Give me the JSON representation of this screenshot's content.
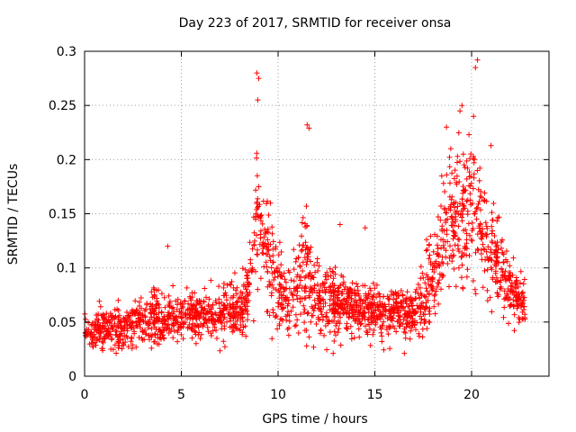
{
  "chart_data": {
    "type": "scatter",
    "title": "Day 223 of 2017, SRMTID for receiver onsa",
    "xlabel": "GPS time / hours",
    "ylabel": "SRMTID / TECUs",
    "xlim": [
      0,
      24
    ],
    "ylim": [
      0,
      0.3
    ],
    "xticks": [
      0,
      5,
      10,
      15,
      20
    ],
    "xtick_labels": [
      "0",
      "5",
      "10",
      "15",
      "20"
    ],
    "yticks": [
      0,
      0.05,
      0.1,
      0.15,
      0.2,
      0.25,
      0.3
    ],
    "ytick_labels": [
      "0",
      "0.05",
      "0.1",
      "0.15",
      "0.2",
      "0.25",
      "0.3"
    ],
    "grid": true,
    "marker": "+",
    "color": "#ff0000",
    "series": [
      {
        "name": "onsa",
        "profile_x": [
          0,
          1,
          2,
          3,
          4,
          5,
          6,
          7,
          8,
          8.5,
          8.8,
          9.0,
          9.3,
          9.6,
          10,
          10.5,
          11,
          11.5,
          11.8,
          12,
          12.5,
          13,
          14,
          15,
          16,
          17,
          17.5,
          18,
          18.5,
          19,
          19.5,
          20,
          20.5,
          21,
          21.5,
          22,
          22.5,
          22.8
        ],
        "profile_mean": [
          0.04,
          0.045,
          0.045,
          0.05,
          0.05,
          0.055,
          0.058,
          0.058,
          0.06,
          0.08,
          0.13,
          0.15,
          0.12,
          0.1,
          0.08,
          0.075,
          0.08,
          0.1,
          0.08,
          0.07,
          0.07,
          0.065,
          0.065,
          0.06,
          0.06,
          0.06,
          0.07,
          0.09,
          0.12,
          0.15,
          0.15,
          0.16,
          0.14,
          0.11,
          0.1,
          0.08,
          0.07,
          0.06
        ],
        "profile_spread": [
          0.015,
          0.018,
          0.018,
          0.02,
          0.02,
          0.02,
          0.02,
          0.02,
          0.02,
          0.03,
          0.06,
          0.07,
          0.05,
          0.04,
          0.03,
          0.03,
          0.035,
          0.06,
          0.035,
          0.03,
          0.03,
          0.025,
          0.025,
          0.02,
          0.02,
          0.02,
          0.03,
          0.04,
          0.05,
          0.06,
          0.06,
          0.07,
          0.05,
          0.04,
          0.035,
          0.025,
          0.02,
          0.02
        ],
        "point_count": 2200,
        "peaks": [
          {
            "x": 8.9,
            "y": 0.28
          },
          {
            "x": 9.0,
            "y": 0.275
          },
          {
            "x": 8.95,
            "y": 0.255
          },
          {
            "x": 11.5,
            "y": 0.232
          },
          {
            "x": 11.6,
            "y": 0.229
          },
          {
            "x": 20.3,
            "y": 0.292
          },
          {
            "x": 20.2,
            "y": 0.285
          },
          {
            "x": 19.5,
            "y": 0.25
          },
          {
            "x": 19.4,
            "y": 0.245
          },
          {
            "x": 20.1,
            "y": 0.24
          },
          {
            "x": 18.7,
            "y": 0.23
          },
          {
            "x": 21.0,
            "y": 0.213
          },
          {
            "x": 4.3,
            "y": 0.12
          },
          {
            "x": 13.2,
            "y": 0.14
          },
          {
            "x": 14.5,
            "y": 0.137
          }
        ]
      }
    ]
  }
}
